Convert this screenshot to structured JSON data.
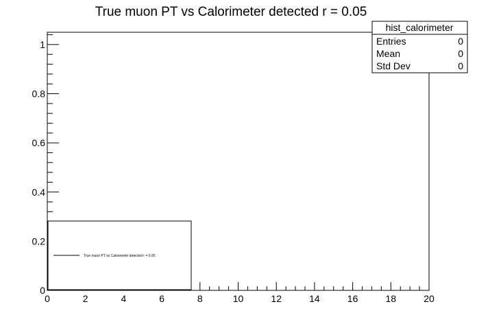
{
  "chart_data": {
    "type": "bar",
    "title": "True muon PT vs Calorimeter detected r = 0.05",
    "xlabel": "",
    "ylabel": "",
    "xlim": [
      0,
      20
    ],
    "ylim": [
      0,
      1.05
    ],
    "x_ticks": [
      0,
      2,
      4,
      6,
      8,
      10,
      12,
      14,
      16,
      18,
      20
    ],
    "y_ticks": [
      0,
      0.2,
      0.4,
      0.6,
      0.8,
      1
    ],
    "x_tick_labels": [
      "0",
      "2",
      "4",
      "6",
      "8",
      "10",
      "12",
      "14",
      "16",
      "18",
      "20"
    ],
    "y_tick_labels": [
      "0",
      "0.2",
      "0.4",
      "0.6",
      "0.8",
      "1"
    ],
    "series": [
      {
        "name": "True muon PT vs Calorimeter detected r = 0.05",
        "values": []
      }
    ],
    "grid": false,
    "legend_position": "bottom-left",
    "stats_box": {
      "name": "hist_calorimeter",
      "rows": [
        {
          "label": "Entries",
          "value": "0"
        },
        {
          "label": "Mean",
          "value": "0"
        },
        {
          "label": "Std Dev",
          "value": "0"
        }
      ]
    }
  }
}
